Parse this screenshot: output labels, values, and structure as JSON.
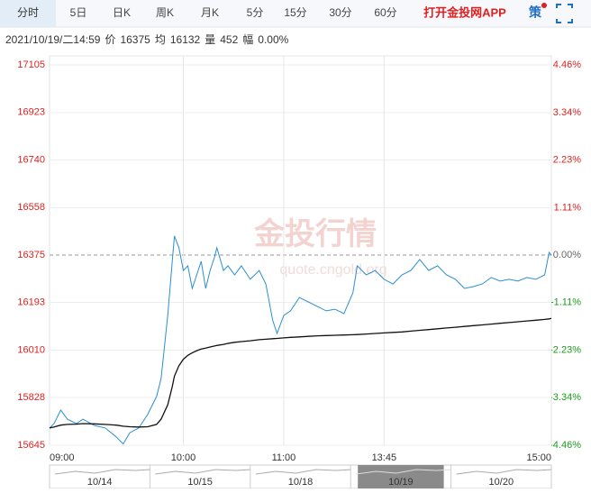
{
  "tabs": [
    "分时",
    "5日",
    "日K",
    "周K",
    "月K",
    "5分",
    "15分",
    "30分",
    "60分"
  ],
  "active_tab": 0,
  "app_link": "打开金投网APP",
  "strategy": "策",
  "info": {
    "datetime": "2021/10/19/二14:59",
    "price_label": "价",
    "price": 16375,
    "avg_label": "均",
    "avg": 16132,
    "volume_label": "量",
    "volume": 452,
    "change_label": "幅",
    "change": "0.00%"
  },
  "watermark": {
    "name": "金投行情",
    "url": "quote.cngold.org"
  },
  "chart_data": {
    "type": "line",
    "x": [
      0,
      2,
      5,
      8,
      12,
      15,
      20,
      25,
      30,
      33,
      36,
      40,
      44,
      48,
      50,
      53,
      55,
      56,
      58,
      60,
      62,
      64,
      66,
      68,
      70,
      72,
      74,
      75,
      78,
      80,
      83,
      86,
      90,
      94,
      97,
      100,
      102,
      105,
      108,
      112,
      116,
      120,
      124,
      128,
      132,
      136,
      138,
      142,
      146,
      150,
      154,
      158,
      162,
      166,
      170,
      174,
      178,
      182,
      186,
      190,
      194,
      198,
      202,
      206,
      210,
      214,
      218,
      222,
      224,
      225
    ],
    "series": [
      {
        "color": "#2a8fd0",
        "values": [
          15711,
          15728,
          15780,
          15745,
          15728,
          15745,
          15721,
          15711,
          15676,
          15650,
          15693,
          15711,
          15763,
          15832,
          15901,
          16143,
          16351,
          16448,
          16403,
          16316,
          16334,
          16247,
          16299,
          16351,
          16247,
          16316,
          16368,
          16403,
          16316,
          16334,
          16299,
          16334,
          16282,
          16316,
          16264,
          16126,
          16074,
          16143,
          16161,
          16212,
          16195,
          16178,
          16161,
          16167,
          16150,
          16230,
          16334,
          16299,
          16316,
          16282,
          16264,
          16299,
          16316,
          16358,
          16316,
          16334,
          16299,
          16282,
          16247,
          16254,
          16264,
          16289,
          16275,
          16282,
          16275,
          16289,
          16282,
          16299,
          16385,
          16375
        ]
      },
      {
        "color": "#111111",
        "values": [
          15711,
          15715,
          15722,
          15725,
          15726,
          15728,
          15727,
          15725,
          15722,
          15718,
          15716,
          15715,
          15716,
          15725,
          15745,
          15800,
          15870,
          15910,
          15950,
          15975,
          15990,
          16000,
          16008,
          16014,
          16018,
          16022,
          16026,
          16028,
          16032,
          16036,
          16040,
          16043,
          16046,
          16050,
          16052,
          16054,
          16055,
          16057,
          16059,
          16061,
          16063,
          16065,
          16066,
          16067,
          16068,
          16069,
          16070,
          16072,
          16074,
          16076,
          16078,
          16080,
          16083,
          16086,
          16089,
          16092,
          16095,
          16098,
          16101,
          16104,
          16107,
          16110,
          16113,
          16116,
          16119,
          16122,
          16125,
          16128,
          16130,
          16132
        ]
      }
    ],
    "xlim": [
      0,
      225
    ],
    "xticks": [
      {
        "value": 0,
        "label": "09:00"
      },
      {
        "value": 60,
        "label": "10:00"
      },
      {
        "value": 105,
        "label": "11:00"
      },
      {
        "value": 150,
        "label": "13:45"
      },
      {
        "value": 225,
        "label": "15:00"
      }
    ],
    "ylim": [
      15645,
      17105
    ],
    "yticks": [
      15645,
      15828,
      16010,
      16193,
      16375,
      16558,
      16740,
      16923,
      17105
    ],
    "y2lim": [
      -4.46,
      4.46
    ],
    "y2ticks": [
      {
        "value": -4.46,
        "label": "-4.46%"
      },
      {
        "value": -3.34,
        "label": "-3.34%"
      },
      {
        "value": -2.23,
        "label": "-2.23%"
      },
      {
        "value": -1.11,
        "label": "-1.11%"
      },
      {
        "value": 0,
        "label": "0.00%"
      },
      {
        "value": 1.11,
        "label": "1.11%"
      },
      {
        "value": 2.23,
        "label": "2.23%"
      },
      {
        "value": 3.34,
        "label": "3.34%"
      },
      {
        "value": 4.46,
        "label": "4.46%"
      }
    ],
    "y2_colors": {
      "positive": "#e02020",
      "zero": "#666666",
      "negative": "#1a9c1a"
    },
    "grid": true
  },
  "navigator": {
    "dates": [
      "10/14",
      "10/15",
      "10/18",
      "10/19",
      "10/20"
    ],
    "selected": 3
  }
}
